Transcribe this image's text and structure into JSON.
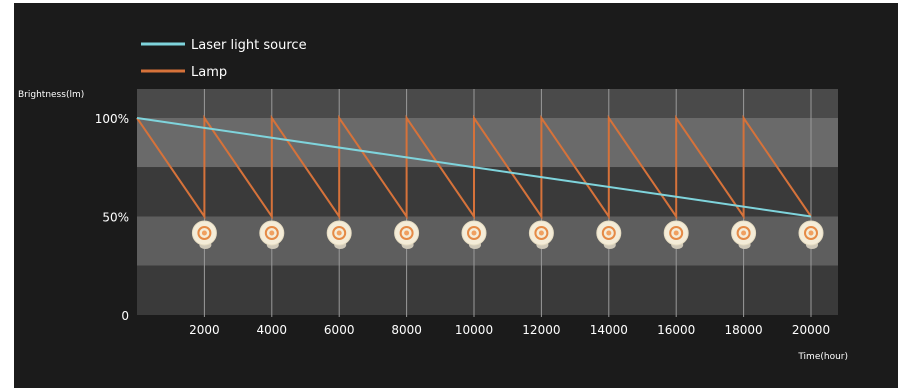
{
  "colors": {
    "background": "#1b1b1b",
    "band_dark": "#333333",
    "band_light": "#565656",
    "gridline": "#9a9a9a",
    "laser": "#7fd4dc",
    "lamp": "#d6723a",
    "text": "#ffffff",
    "text_dim": "#d0d0d0"
  },
  "legend_icon_name": "lightbulb-icon",
  "chart_data": {
    "type": "line",
    "xlabel": "Time(hour)",
    "ylabel": "Brightness(lm)",
    "xlim": [
      0,
      20000
    ],
    "ylim": [
      0,
      100
    ],
    "x_ticks": [
      {
        "value": 2000,
        "label": "2000"
      },
      {
        "value": 4000,
        "label": "4000"
      },
      {
        "value": 6000,
        "label": "6000"
      },
      {
        "value": 8000,
        "label": "8000"
      },
      {
        "value": 10000,
        "label": "10000"
      },
      {
        "value": 12000,
        "label": "12000"
      },
      {
        "value": 14000,
        "label": "14000"
      },
      {
        "value": 16000,
        "label": "16000"
      },
      {
        "value": 18000,
        "label": "18000"
      },
      {
        "value": 20000,
        "label": "20000"
      }
    ],
    "y_ticks": [
      {
        "value": 0,
        "label": "0"
      },
      {
        "value": 50,
        "label": "50%"
      },
      {
        "value": 100,
        "label": "100%"
      }
    ],
    "legend_placement": "top-left",
    "grid": true,
    "series": [
      {
        "name": "Laser light source",
        "x": [
          0,
          4000,
          8000,
          12000,
          16000,
          20000
        ],
        "y": [
          100,
          90,
          80,
          70,
          60,
          50
        ]
      },
      {
        "name": "Lamp",
        "x": [
          0,
          2000,
          2000,
          4000,
          4000,
          6000,
          6000,
          8000,
          8000,
          10000,
          10000,
          12000,
          12000,
          14000,
          14000,
          16000,
          16000,
          18000,
          18000,
          20000
        ],
        "y": [
          100,
          50,
          100,
          50,
          100,
          50,
          100,
          50,
          100,
          50,
          100,
          50,
          100,
          50,
          100,
          50,
          100,
          50,
          100,
          50
        ]
      }
    ],
    "lamp_replacements_x": [
      2000,
      4000,
      6000,
      8000,
      10000,
      12000,
      14000,
      16000,
      18000,
      20000
    ]
  }
}
